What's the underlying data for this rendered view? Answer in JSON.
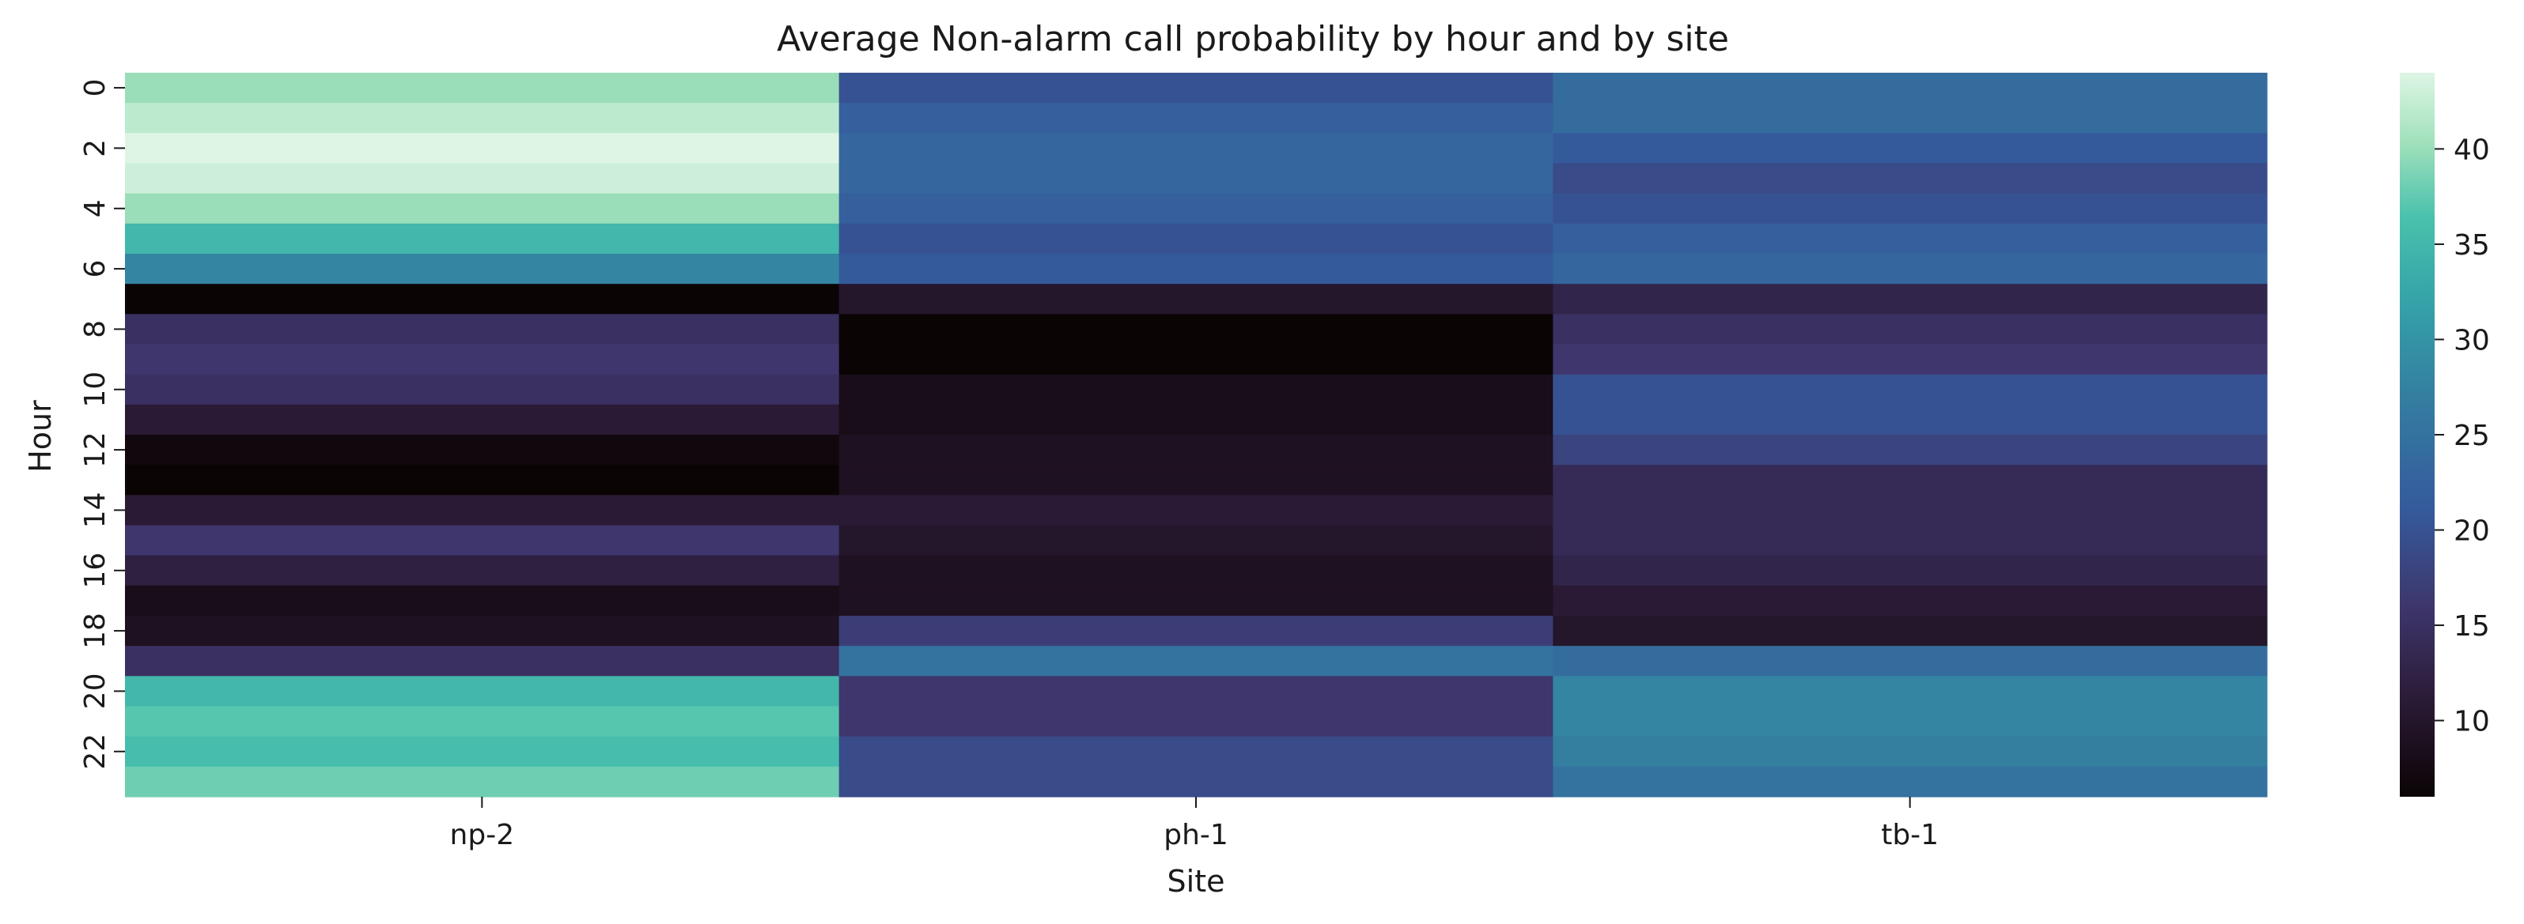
{
  "chart_data": {
    "type": "heatmap",
    "title": "Average Non-alarm call probability by hour and by site",
    "xlabel": "Site",
    "ylabel": "Hour",
    "sites": [
      "np-2",
      "ph-1",
      "tb-1"
    ],
    "hours": [
      0,
      1,
      2,
      3,
      4,
      5,
      6,
      7,
      8,
      9,
      10,
      11,
      12,
      13,
      14,
      15,
      16,
      17,
      18,
      19,
      20,
      21,
      22,
      23
    ],
    "y_tick_labels": [
      "0",
      "2",
      "4",
      "6",
      "8",
      "10",
      "12",
      "14",
      "16",
      "18",
      "20",
      "22"
    ],
    "values": [
      [
        40,
        20,
        24
      ],
      [
        42,
        22,
        24
      ],
      [
        44,
        23,
        21
      ],
      [
        43,
        23,
        19
      ],
      [
        40,
        22,
        20
      ],
      [
        35,
        20,
        22
      ],
      [
        28,
        21,
        23
      ],
      [
        6,
        10,
        13
      ],
      [
        15,
        6,
        15
      ],
      [
        16,
        6,
        16
      ],
      [
        15,
        8,
        20
      ],
      [
        11,
        8,
        20
      ],
      [
        7,
        9,
        18
      ],
      [
        6,
        9,
        14
      ],
      [
        11,
        11,
        14
      ],
      [
        16,
        10,
        14
      ],
      [
        12,
        9,
        13
      ],
      [
        8,
        9,
        11
      ],
      [
        9,
        17,
        10
      ],
      [
        15,
        25,
        24
      ],
      [
        35,
        16,
        28
      ],
      [
        37,
        16,
        28
      ],
      [
        36,
        19,
        27
      ],
      [
        38,
        19,
        25
      ]
    ],
    "colorbar": {
      "min": 6,
      "max": 44,
      "ticks": [
        10,
        15,
        20,
        25,
        30,
        35,
        40
      ],
      "colormap": "mako"
    },
    "grid": false,
    "legend": "colorbar-right"
  }
}
